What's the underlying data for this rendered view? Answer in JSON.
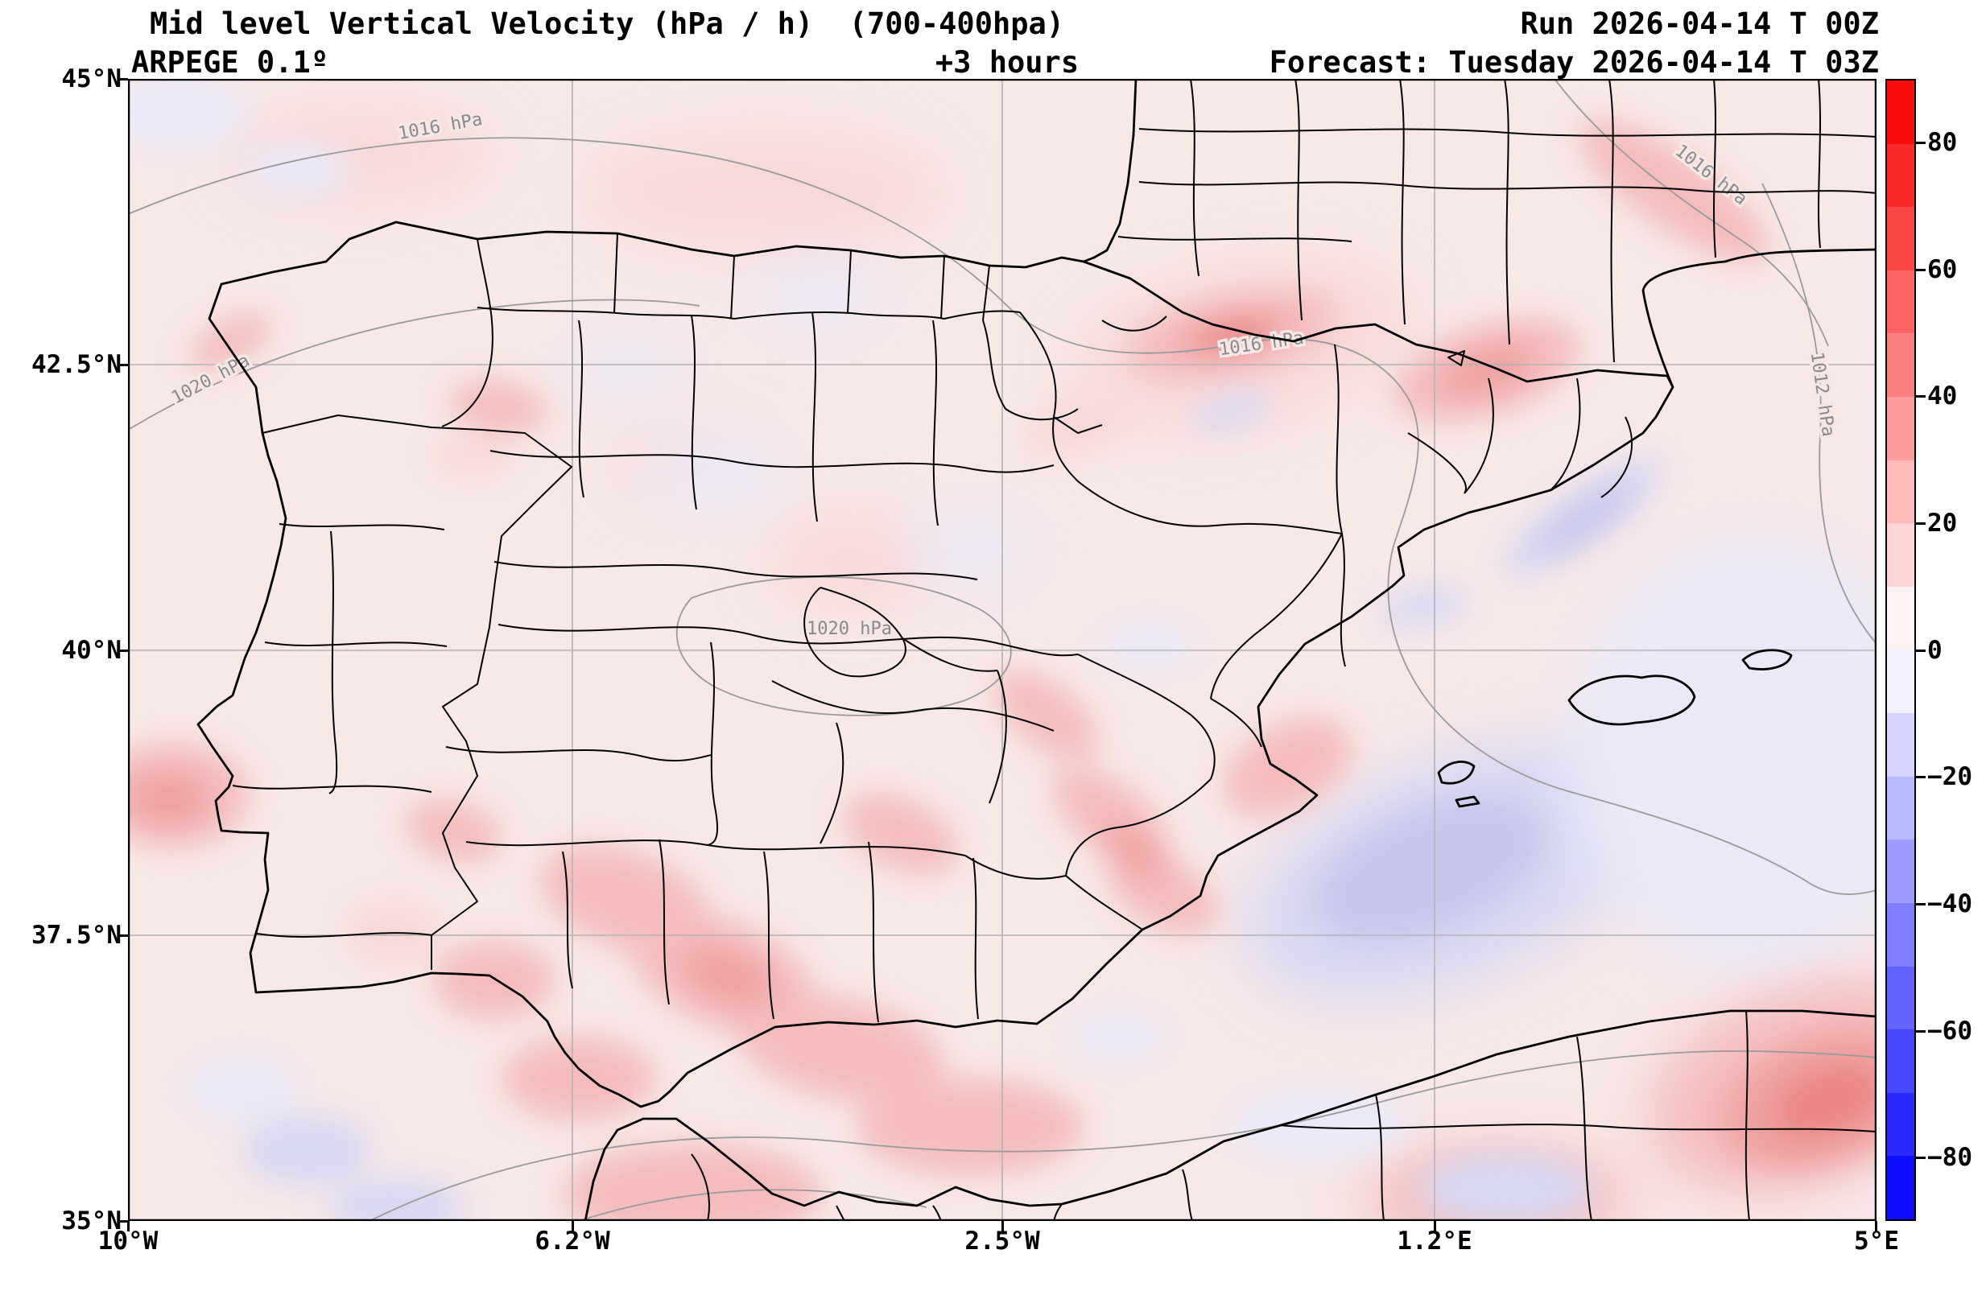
{
  "header": {
    "title_line1": "Mid level Vertical Velocity (hPa / h)  (700-400hpa)",
    "title_line2": "ARPEGE 0.1º",
    "lead_time": "+3 hours",
    "run_line": "Run 2026-04-14 T 00Z",
    "forecast_line": "Forecast: Tuesday 2026-04-14 T 03Z"
  },
  "chart_data": {
    "type": "heatmap",
    "title": "Mid level Vertical Velocity (hPa / h) (700-400hpa)",
    "model": "ARPEGE 0.1º",
    "run": "2026-04-14 T 00Z",
    "forecast_valid": "Tuesday 2026-04-14 T 03Z",
    "lead_time": "+3 hours",
    "units": "hPa / h",
    "layer": "700-400 hPa",
    "region": "Iberian Peninsula and western Mediterranean (10°W-5°E, 35°N-45°N)",
    "x_axis": {
      "ticks": [
        "10°W",
        "6.2°W",
        "2.5°W",
        "1.2°E",
        "5°E"
      ],
      "range_deg_lon": [
        -10,
        5
      ],
      "grid": true
    },
    "y_axis": {
      "ticks": [
        "45°N",
        "42.5°N",
        "40°N",
        "37.5°N",
        "35°N"
      ],
      "range_deg_lat": [
        35,
        45
      ],
      "grid": true
    },
    "colorbar": {
      "position": "right",
      "range": [
        -90,
        90
      ],
      "band_step": 10,
      "tick_labels": [
        "80",
        "60",
        "40",
        "20",
        "0",
        "−20",
        "−40",
        "−60",
        "−80"
      ],
      "band_colors_top_to_bottom": [
        "#fa0d0d",
        "#fb2a2a",
        "#fc4646",
        "#fc6363",
        "#fd8080",
        "#fd9c9c",
        "#feb9b9",
        "#fed5d5",
        "#fff2f2",
        "#f2f2ff",
        "#d5d5ff",
        "#b9b9ff",
        "#9c9cff",
        "#8080ff",
        "#6363ff",
        "#4646ff",
        "#2a2aff",
        "#0d0dff"
      ]
    },
    "isobar_labels": [
      "1016 hPa",
      "1020 hPa",
      "1020 hPa",
      "1016 hPa",
      "1016 hPa",
      "1012 hPa"
    ],
    "field_summary": [
      {
        "feature": "weak positive vertical velocity (pale red) over most of Iberia",
        "approx_value_hPa_h": 5
      },
      {
        "feature": "strongest maximum near 42.8°N 0.5°W, northeast Spain",
        "approx_value_hPa_h": 35
      },
      {
        "feature": "band of maxima across Andalusia and the Alboran / Moroccan coast",
        "approx_value_hPa_h": 20
      },
      {
        "feature": "negative area (pale blue) over the Balearic Sea",
        "approx_value_hPa_h": -15
      },
      {
        "feature": "strong maximum in bottom-right corner off the Algerian coast",
        "approx_value_hPa_h": 40
      }
    ]
  },
  "colors": {
    "background": "#ffffff",
    "field_base": "#f8e8e8",
    "grid": "#b3b3b3",
    "isobar": "#9a9a9a",
    "boundaries": "#000000"
  }
}
